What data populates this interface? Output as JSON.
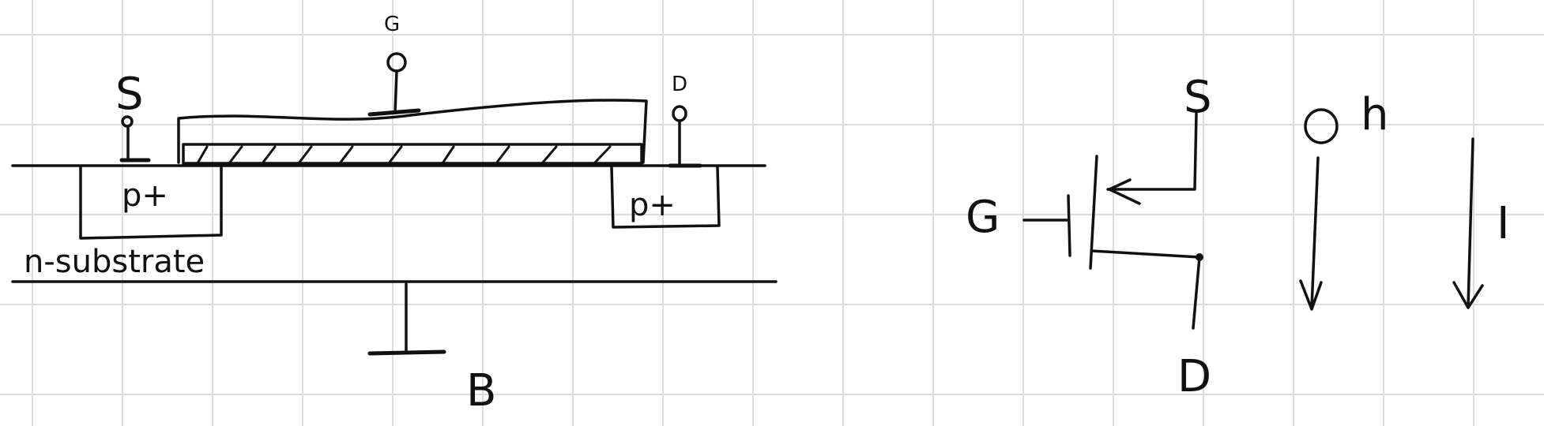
{
  "cross_section": {
    "gate_label": "G",
    "source_label": "S",
    "drain_label": "D",
    "source_region_label": "p+",
    "drain_region_label": "p+",
    "substrate_label": "n-substrate",
    "body_label": "B"
  },
  "symbol": {
    "gate_label": "G",
    "source_label": "S",
    "drain_label": "D"
  },
  "current": {
    "ground_symbol_text": "h",
    "current_label": "I"
  },
  "colors": {
    "ink": "#111111",
    "grid": "#dcdcdc",
    "paper": "#ffffff"
  }
}
